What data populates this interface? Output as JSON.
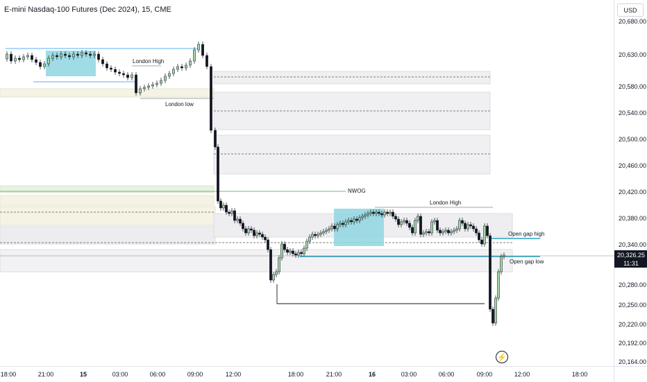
{
  "header": {
    "symbol_title": "E-mini Nasdaq-100 Futures (Dec 2024), 15, CME"
  },
  "price_axis": {
    "currency": "USD",
    "ticks": [
      "20,680.00",
      "20,630.00",
      "20,580.00",
      "20,540.00",
      "20,500.00",
      "20,460.00",
      "20,420.00",
      "20,380.00",
      "20,340.00",
      "20,280.00",
      "20,250.00",
      "20,220.00",
      "20,192.00",
      "20,164.00"
    ],
    "last_price": "20,326.25",
    "countdown": "11:31"
  },
  "time_axis": {
    "ticks": [
      {
        "label": "18:00",
        "bold": false
      },
      {
        "label": "21:00",
        "bold": false
      },
      {
        "label": "15",
        "bold": true
      },
      {
        "label": "03:00",
        "bold": false
      },
      {
        "label": "06:00",
        "bold": false
      },
      {
        "label": "09:00",
        "bold": false
      },
      {
        "label": "12:00",
        "bold": false
      },
      {
        "label": "18:00",
        "bold": false
      },
      {
        "label": "21:00",
        "bold": false
      },
      {
        "label": "16",
        "bold": true
      },
      {
        "label": "03:00",
        "bold": false
      },
      {
        "label": "06:00",
        "bold": false
      },
      {
        "label": "09:00",
        "bold": false
      },
      {
        "label": "12:00",
        "bold": false
      },
      {
        "label": "18:00",
        "bold": false
      }
    ]
  },
  "annotations": {
    "london_high_1": "London High",
    "london_low_1": "London low",
    "nwog": "NWOG",
    "london_high_2": "London High",
    "open_gap_high": "Open gap high",
    "open_gap_low": "Open gap low"
  },
  "chart_data": {
    "type": "candlestick",
    "title": "E-mini Nasdaq-100 Futures (Dec 2024), 15, CME",
    "ylim": [
      20164,
      20700
    ],
    "last_price": 20326.25,
    "colors": {
      "up": "#a5d6a7",
      "down": "#131722",
      "accent": "#2196f3",
      "gap_line": "#26a0c0"
    },
    "levels": [
      {
        "name": "London High",
        "value": 20640
      },
      {
        "name": "London low",
        "value": 20570
      },
      {
        "name": "NWOG",
        "value": 20430
      },
      {
        "name": "London High",
        "value": 20400
      },
      {
        "name": "Open gap high",
        "value": 20352
      },
      {
        "name": "Open gap low",
        "value": 20330
      }
    ]
  }
}
